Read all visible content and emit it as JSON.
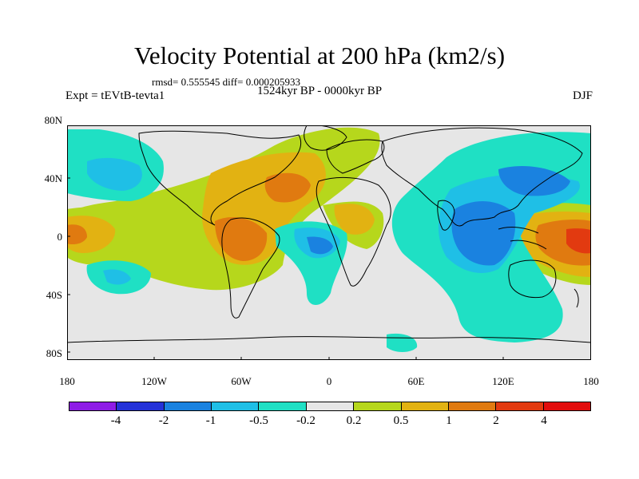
{
  "header": {
    "title": "Velocity Potential at 200 hPa (km2/s)",
    "stats": "rmsd= 0.555545 diff= 0.000205933",
    "period": "1524kyr BP - 0000kyr BP",
    "experiment": "Expt = tEVtB-tevta1",
    "season": "DJF"
  },
  "axes": {
    "lat_labels": [
      "80N",
      "40N",
      "0",
      "40S",
      "80S"
    ],
    "lon_labels": [
      "180",
      "120W",
      "60W",
      "0",
      "60E",
      "120E",
      "180"
    ]
  },
  "colorbar": {
    "labels": [
      "-4",
      "-2",
      "-1",
      "-0.5",
      "-0.2",
      "0.2",
      "0.5",
      "1",
      "2",
      "4"
    ],
    "colors": [
      "#8e1ce6",
      "#2432d8",
      "#1a82e0",
      "#1fbfe6",
      "#1fe0c4",
      "#e6e6e6",
      "#b6d71c",
      "#e2b212",
      "#e07a10",
      "#e23a10",
      "#e20d0d"
    ]
  }
}
